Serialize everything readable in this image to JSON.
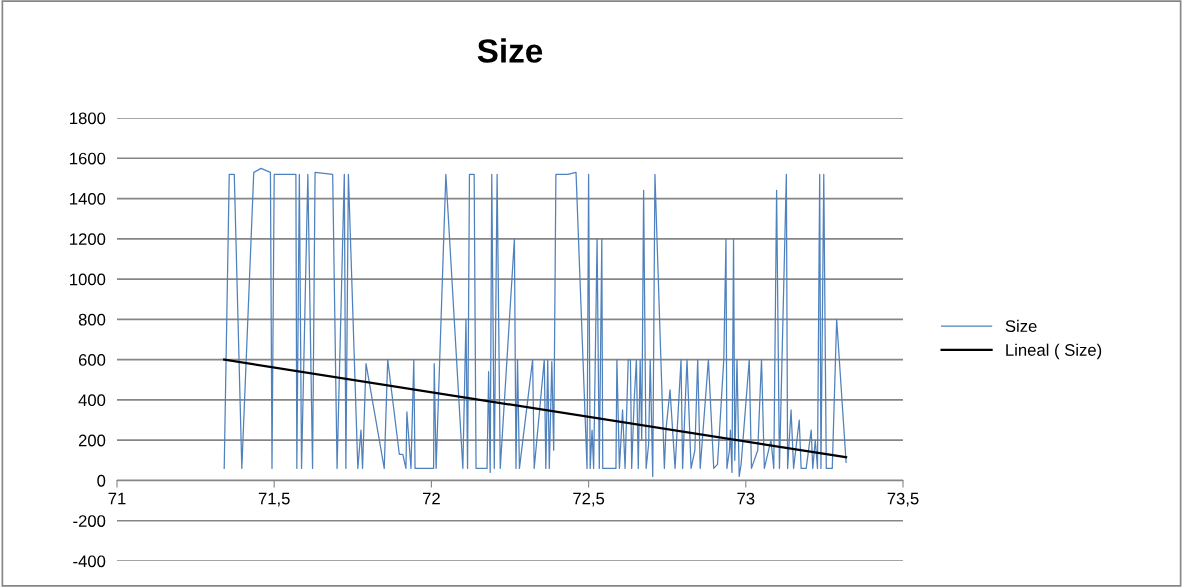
{
  "chart_data": {
    "type": "line",
    "title": "Size",
    "series": [
      {
        "name": "Size",
        "color": "#4f81bd",
        "x": [
          71.341,
          71.357,
          71.373,
          71.397,
          71.435,
          71.458,
          71.488,
          71.493,
          71.5,
          71.569,
          71.572,
          71.58,
          71.587,
          71.607,
          71.622,
          71.63,
          71.686,
          71.7,
          71.723,
          71.728,
          71.736,
          71.766,
          71.776,
          71.781,
          71.792,
          71.85,
          71.861,
          71.898,
          71.909,
          71.919,
          71.922,
          71.935,
          71.944,
          71.948,
          72.007,
          72.009,
          72.015,
          72.046,
          72.1,
          72.11,
          72.115,
          72.121,
          72.136,
          72.142,
          72.177,
          72.182,
          72.187,
          72.192,
          72.2,
          72.209,
          72.219,
          72.264,
          72.269,
          72.274,
          72.28,
          72.322,
          72.327,
          72.359,
          72.364,
          72.37,
          72.375,
          72.383,
          72.389,
          72.396,
          72.434,
          72.46,
          72.495,
          72.5,
          72.505,
          72.511,
          72.516,
          72.527,
          72.534,
          72.542,
          72.545,
          72.587,
          72.59,
          72.598,
          72.608,
          72.616,
          72.626,
          72.633,
          72.637,
          72.645,
          72.652,
          72.658,
          72.664,
          72.669,
          72.675,
          72.683,
          72.691,
          72.696,
          72.704,
          72.711,
          72.741,
          72.746,
          72.759,
          72.775,
          72.794,
          72.799,
          72.813,
          72.826,
          72.838,
          72.847,
          72.855,
          72.881,
          72.898,
          72.91,
          72.93,
          72.937,
          72.94,
          72.948,
          72.951,
          72.956,
          72.961,
          72.965,
          72.972,
          72.979,
          72.985,
          73.011,
          73.018,
          73.038,
          73.05,
          73.059,
          73.08,
          73.089,
          73.098,
          73.107,
          73.129,
          73.133,
          73.144,
          73.152,
          73.17,
          73.176,
          73.192,
          73.208,
          73.213,
          73.221,
          73.228,
          73.235,
          73.239,
          73.248,
          73.256,
          73.275,
          73.289,
          73.319
        ],
        "values": [
          60,
          1520,
          1520,
          60,
          1530,
          1550,
          1530,
          60,
          1520,
          1520,
          60,
          1520,
          60,
          1520,
          60,
          1530,
          1520,
          60,
          1520,
          60,
          1520,
          60,
          250,
          60,
          580,
          60,
          600,
          130,
          130,
          60,
          340,
          60,
          600,
          60,
          60,
          580,
          60,
          1520,
          60,
          800,
          60,
          1520,
          1520,
          60,
          60,
          540,
          40,
          1520,
          60,
          1520,
          60,
          1200,
          60,
          600,
          60,
          600,
          60,
          600,
          60,
          600,
          60,
          590,
          150,
          1520,
          1520,
          1530,
          60,
          1520,
          60,
          250,
          60,
          1200,
          60,
          1200,
          60,
          60,
          600,
          60,
          350,
          60,
          600,
          600,
          60,
          400,
          600,
          60,
          600,
          200,
          1440,
          60,
          180,
          600,
          20,
          1520,
          60,
          250,
          450,
          60,
          600,
          60,
          600,
          60,
          150,
          600,
          60,
          600,
          60,
          80,
          600,
          1200,
          60,
          150,
          250,
          40,
          1200,
          100,
          600,
          20,
          80,
          600,
          60,
          150,
          600,
          60,
          200,
          60,
          1440,
          60,
          1520,
          60,
          350,
          60,
          300,
          60,
          60,
          250,
          60,
          200,
          60,
          1520,
          60,
          1520,
          60,
          60,
          800,
          90
        ]
      },
      {
        "name": "Lineal ( Size)",
        "color": "#000000",
        "x": [
          71.341,
          73.319
        ],
        "values": [
          600,
          115
        ]
      }
    ],
    "xlim": [
      71,
      73.5
    ],
    "xticks": [
      71,
      {
        "value": 71.5,
        "label": "71,5"
      },
      72,
      {
        "value": 72.5,
        "label": "72,5"
      },
      73,
      {
        "value": 73.5,
        "label": "73,5"
      }
    ],
    "ylim": [
      -400,
      1800
    ],
    "yticks": [
      -400,
      -200,
      0,
      200,
      400,
      600,
      800,
      1000,
      1200,
      1400,
      1600,
      1800
    ],
    "grid": "y",
    "legend": "right",
    "marker": "none",
    "line_style": "solid"
  }
}
